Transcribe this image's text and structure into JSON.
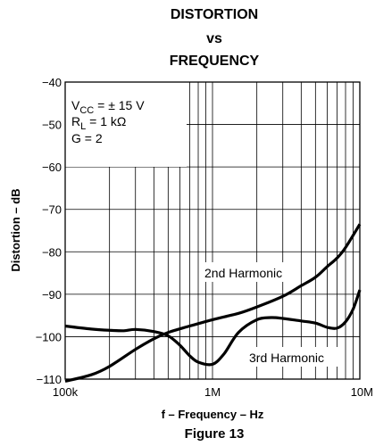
{
  "title_lines": [
    "DISTORTION",
    "vs",
    "FREQUENCY"
  ],
  "figure_label": "Figure 13",
  "conditions": {
    "vcc_symbol": "V",
    "vcc_sub": "CC",
    "vcc_value": " = ± 15 V",
    "rl_symbol": "R",
    "rl_sub": "L",
    "rl_value": " = 1 kΩ",
    "gain": "G = 2"
  },
  "chart_data": {
    "type": "line",
    "title": "DISTORTION vs FREQUENCY",
    "xlabel": "f – Frequency – Hz",
    "ylabel": "Distortion – dB",
    "x_scale": "log",
    "xlim": [
      100000,
      10000000
    ],
    "ylim": [
      -110,
      -40
    ],
    "grid": true,
    "x_ticks": [
      {
        "value": 100000,
        "label": "100k"
      },
      {
        "value": 1000000,
        "label": "1M"
      },
      {
        "value": 10000000,
        "label": "10M"
      }
    ],
    "y_ticks": [
      {
        "value": -40,
        "label": "−40"
      },
      {
        "value": -50,
        "label": "−50"
      },
      {
        "value": -60,
        "label": "−60"
      },
      {
        "value": -70,
        "label": "−70"
      },
      {
        "value": -80,
        "label": "−80"
      },
      {
        "value": -90,
        "label": "−90"
      },
      {
        "value": -100,
        "label": "−100"
      },
      {
        "value": -110,
        "label": "−110"
      }
    ],
    "series": [
      {
        "name": "2nd Harmonic",
        "x": [
          100000,
          150000,
          200000,
          300000,
          400000,
          500000,
          700000,
          1000000,
          1500000,
          2000000,
          3000000,
          4000000,
          5000000,
          6000000,
          7000000,
          8000000,
          10000000
        ],
        "y": [
          -110.5,
          -109,
          -107,
          -103,
          -100.5,
          -99,
          -97.5,
          -96,
          -94.5,
          -93,
          -90.5,
          -88,
          -86,
          -83.5,
          -81.5,
          -79,
          -73.5
        ]
      },
      {
        "name": "3rd Harmonic",
        "x": [
          100000,
          150000,
          200000,
          250000,
          300000,
          400000,
          500000,
          600000,
          700000,
          800000,
          1000000,
          1200000,
          1500000,
          2000000,
          2500000,
          3000000,
          4000000,
          5000000,
          6000000,
          7000000,
          8000000,
          9000000,
          10000000
        ],
        "y": [
          -97.5,
          -98.2,
          -98.5,
          -98.6,
          -98.3,
          -98.8,
          -99.8,
          -102,
          -104.5,
          -106,
          -106.5,
          -104,
          -99,
          -96,
          -95.5,
          -95.7,
          -96.3,
          -96.8,
          -97.8,
          -98,
          -96.5,
          -93.5,
          -89
        ]
      }
    ]
  }
}
